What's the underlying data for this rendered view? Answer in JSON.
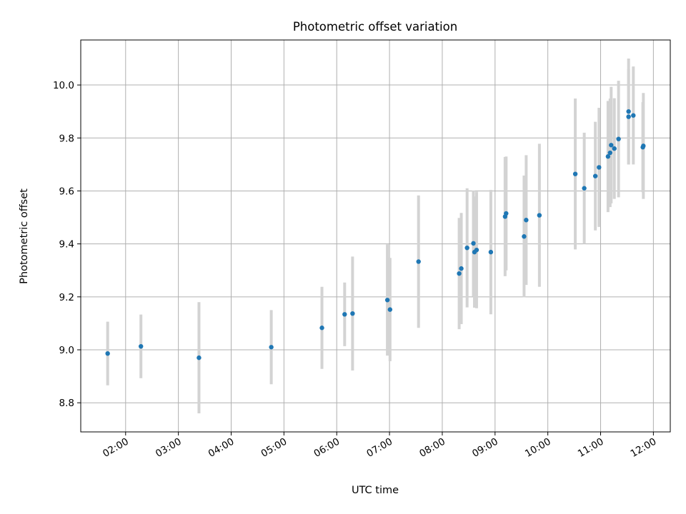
{
  "chart_data": {
    "type": "scatter",
    "title": "Photometric offset variation",
    "xlabel": "UTC time",
    "ylabel": "Photometric offset",
    "x_unit": "hours (UTC)",
    "xlim": [
      1.15,
      12.32
    ],
    "ylim": [
      8.69,
      10.17
    ],
    "x_ticks": [
      2,
      3,
      4,
      5,
      6,
      7,
      8,
      9,
      10,
      11,
      12
    ],
    "x_tick_labels": [
      "02:00",
      "03:00",
      "04:00",
      "05:00",
      "06:00",
      "07:00",
      "08:00",
      "09:00",
      "10:00",
      "11:00",
      "12:00"
    ],
    "y_ticks": [
      8.8,
      9.0,
      9.2,
      9.4,
      9.6,
      9.8,
      10.0
    ],
    "y_tick_labels": [
      "8.8",
      "9.0",
      "9.2",
      "9.4",
      "9.6",
      "9.8",
      "10.0"
    ],
    "grid": true,
    "point_color": "#1f77b4",
    "errorbar_color": "#d3d3d3",
    "points": [
      {
        "x": 1.66,
        "y": 8.986,
        "err": 0.12
      },
      {
        "x": 2.29,
        "y": 9.013,
        "err": 0.12
      },
      {
        "x": 3.39,
        "y": 8.97,
        "err": 0.21
      },
      {
        "x": 4.76,
        "y": 9.01,
        "err": 0.14
      },
      {
        "x": 5.72,
        "y": 9.083,
        "err": 0.155
      },
      {
        "x": 6.15,
        "y": 9.134,
        "err": 0.12
      },
      {
        "x": 6.3,
        "y": 9.137,
        "err": 0.215
      },
      {
        "x": 6.96,
        "y": 9.188,
        "err": 0.21
      },
      {
        "x": 7.01,
        "y": 9.152,
        "err": 0.195
      },
      {
        "x": 7.55,
        "y": 9.333,
        "err": 0.25
      },
      {
        "x": 8.32,
        "y": 9.288,
        "err": 0.21
      },
      {
        "x": 8.36,
        "y": 9.307,
        "err": 0.21
      },
      {
        "x": 8.47,
        "y": 9.385,
        "err": 0.225
      },
      {
        "x": 8.59,
        "y": 9.402,
        "err": 0.2
      },
      {
        "x": 8.61,
        "y": 9.369,
        "err": 0.21
      },
      {
        "x": 8.65,
        "y": 9.377,
        "err": 0.22
      },
      {
        "x": 8.92,
        "y": 9.369,
        "err": 0.235
      },
      {
        "x": 9.19,
        "y": 9.503,
        "err": 0.225
      },
      {
        "x": 9.21,
        "y": 9.515,
        "err": 0.215
      },
      {
        "x": 9.55,
        "y": 9.428,
        "err": 0.23
      },
      {
        "x": 9.59,
        "y": 9.49,
        "err": 0.245
      },
      {
        "x": 9.84,
        "y": 9.508,
        "err": 0.27
      },
      {
        "x": 10.52,
        "y": 9.664,
        "err": 0.285
      },
      {
        "x": 10.69,
        "y": 9.61,
        "err": 0.21
      },
      {
        "x": 10.9,
        "y": 9.656,
        "err": 0.205
      },
      {
        "x": 10.97,
        "y": 9.689,
        "err": 0.225
      },
      {
        "x": 11.14,
        "y": 9.73,
        "err": 0.21
      },
      {
        "x": 11.18,
        "y": 9.744,
        "err": 0.205
      },
      {
        "x": 11.2,
        "y": 9.773,
        "err": 0.22
      },
      {
        "x": 11.26,
        "y": 9.76,
        "err": 0.19
      },
      {
        "x": 11.34,
        "y": 9.796,
        "err": 0.22
      },
      {
        "x": 11.53,
        "y": 9.9,
        "err": 0.2
      },
      {
        "x": 11.53,
        "y": 9.88,
        "err": 0.18
      },
      {
        "x": 11.62,
        "y": 9.885,
        "err": 0.185
      },
      {
        "x": 11.81,
        "y": 9.77,
        "err": 0.2
      },
      {
        "x": 11.8,
        "y": 9.765,
        "err": 0.17
      }
    ]
  }
}
